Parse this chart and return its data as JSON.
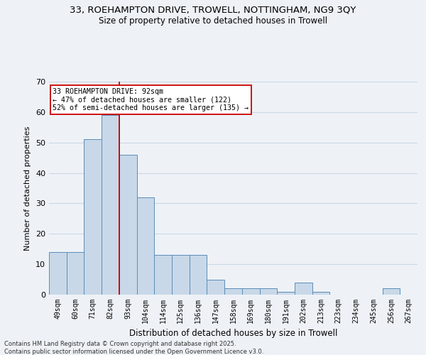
{
  "title_line1": "33, ROEHAMPTON DRIVE, TROWELL, NOTTINGHAM, NG9 3QY",
  "title_line2": "Size of property relative to detached houses in Trowell",
  "xlabel": "Distribution of detached houses by size in Trowell",
  "ylabel": "Number of detached properties",
  "categories": [
    "49sqm",
    "60sqm",
    "71sqm",
    "82sqm",
    "93sqm",
    "104sqm",
    "114sqm",
    "125sqm",
    "136sqm",
    "147sqm",
    "158sqm",
    "169sqm",
    "180sqm",
    "191sqm",
    "202sqm",
    "213sqm",
    "223sqm",
    "234sqm",
    "245sqm",
    "256sqm",
    "267sqm"
  ],
  "values": [
    14,
    14,
    51,
    59,
    46,
    32,
    13,
    13,
    13,
    5,
    2,
    2,
    2,
    1,
    4,
    1,
    0,
    0,
    0,
    2,
    0
  ],
  "bar_color": "#c8d8e8",
  "bar_edge_color": "#5b8db8",
  "background_color": "#eef2f7",
  "grid_color": "#ccd8e4",
  "vline_x_idx": 4,
  "vline_color": "#cc0000",
  "annotation_title": "33 ROEHAMPTON DRIVE: 92sqm",
  "annotation_line1": "← 47% of detached houses are smaller (122)",
  "annotation_line2": "52% of semi-detached houses are larger (135) →",
  "annotation_box_color": "#ffffff",
  "annotation_border_color": "#cc0000",
  "ylim": [
    0,
    70
  ],
  "yticks": [
    0,
    10,
    20,
    30,
    40,
    50,
    60,
    70
  ],
  "footnote_line1": "Contains HM Land Registry data © Crown copyright and database right 2025.",
  "footnote_line2": "Contains public sector information licensed under the Open Government Licence v3.0."
}
